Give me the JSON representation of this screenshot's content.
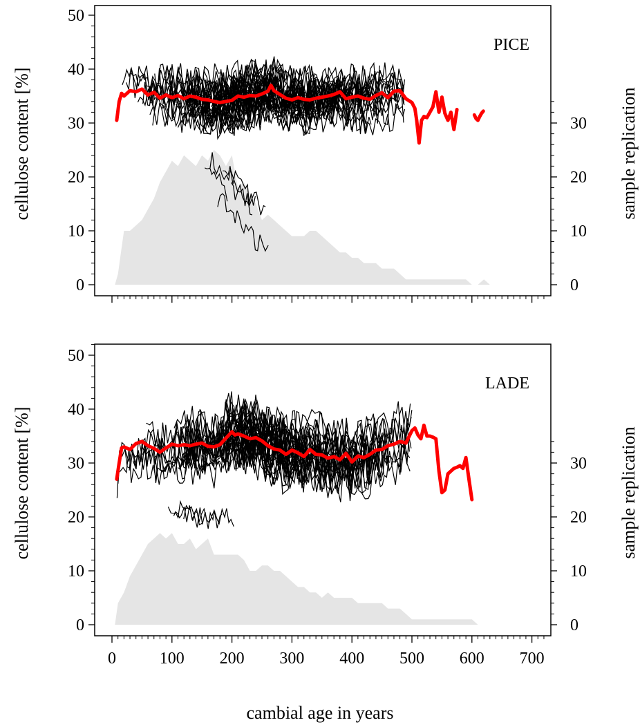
{
  "figure": {
    "xlabel": "cambial age in years",
    "xticks": [
      0,
      100,
      200,
      300,
      400,
      500,
      600,
      700
    ]
  },
  "chart_data": [
    {
      "type": "line",
      "panel": "PICE",
      "ylabel_left": "cellulose content [%]",
      "ylabel_right": "sample replication",
      "xlim": [
        0,
        725
      ],
      "ylim": [
        0,
        50
      ],
      "yticks_left": [
        0,
        10,
        20,
        30,
        40,
        50
      ],
      "yticks_right": [
        0,
        10,
        20,
        30
      ],
      "grid": false,
      "series": [
        {
          "role": "sample-replication-area",
          "color": "#e5e5e5",
          "x": [
            5,
            10,
            15,
            20,
            30,
            40,
            50,
            60,
            70,
            80,
            90,
            100,
            110,
            120,
            130,
            140,
            150,
            160,
            170,
            180,
            190,
            200,
            210,
            220,
            230,
            240,
            250,
            260,
            270,
            280,
            290,
            300,
            310,
            320,
            330,
            340,
            350,
            360,
            370,
            380,
            390,
            400,
            410,
            420,
            430,
            440,
            450,
            460,
            470,
            480,
            490,
            500,
            510,
            520,
            530,
            540,
            550,
            560,
            570,
            580,
            590,
            600,
            610,
            620,
            630,
            650,
            700,
            725
          ],
          "values": [
            0,
            2,
            6,
            10,
            10,
            11,
            12,
            14,
            16,
            19,
            21,
            23,
            22,
            24,
            23,
            22,
            24,
            23,
            25,
            24,
            22,
            24,
            18,
            19,
            17,
            15,
            12,
            13,
            12,
            11,
            10,
            9,
            9,
            9,
            10,
            10,
            9,
            8,
            7,
            6,
            6,
            5,
            5,
            4,
            4,
            4,
            3,
            3,
            3,
            2,
            1,
            1,
            1,
            1,
            1,
            1,
            1,
            1,
            1,
            1,
            1,
            0,
            0,
            1,
            0,
            0,
            0,
            0
          ]
        },
        {
          "role": "mean-curve",
          "color": "#ff0000",
          "x": [
            8,
            12,
            16,
            20,
            30,
            40,
            50,
            60,
            70,
            80,
            90,
            100,
            110,
            120,
            130,
            140,
            150,
            160,
            170,
            180,
            190,
            200,
            210,
            220,
            230,
            240,
            250,
            260,
            265,
            270,
            280,
            290,
            300,
            310,
            320,
            330,
            340,
            350,
            360,
            370,
            380,
            390,
            400,
            410,
            420,
            430,
            440,
            450,
            460,
            470,
            480,
            490,
            500,
            505,
            508,
            512,
            516,
            520,
            525,
            530,
            535,
            540,
            545,
            550,
            555,
            560,
            565,
            570,
            575
          ],
          "values": [
            30.5,
            34,
            35.5,
            35,
            36,
            35.8,
            36.3,
            35.2,
            35.7,
            34.6,
            35.2,
            34.7,
            35.1,
            34.5,
            35.0,
            34.8,
            34.4,
            34.3,
            34.0,
            33.8,
            34.0,
            34.2,
            35.0,
            34.8,
            35.1,
            35.0,
            35.4,
            35.9,
            37.0,
            36.0,
            35.3,
            34.6,
            34.3,
            34.7,
            34.4,
            34.3,
            34.6,
            34.8,
            35.0,
            35.3,
            35.8,
            34.5,
            34.8,
            35.0,
            34.6,
            34.4,
            35.1,
            35.6,
            34.7,
            35.9,
            36.0,
            34.5,
            33.8,
            32.7,
            30.5,
            26.3,
            30.5,
            31.2,
            31.0,
            32.0,
            33.0,
            35.8,
            32.0,
            34.8,
            31.8,
            30.5,
            32.0,
            28.8,
            32.5
          ]
        },
        {
          "role": "mean-curve-tail",
          "color": "#ff0000",
          "x": [
            604,
            607,
            610,
            613,
            616,
            619
          ],
          "values": [
            31.5,
            30.8,
            30.5,
            31.2,
            31.8,
            32.2
          ]
        }
      ]
    },
    {
      "type": "line",
      "panel": "LADE",
      "ylabel_left": "cellulose content [%]",
      "ylabel_right": "sample replication",
      "xlim": [
        0,
        725
      ],
      "ylim": [
        0,
        52
      ],
      "yticks_left": [
        0,
        10,
        20,
        30,
        40,
        50
      ],
      "yticks_right": [
        0,
        10,
        20,
        30
      ],
      "grid": false,
      "series": [
        {
          "role": "sample-replication-area",
          "color": "#e5e5e5",
          "x": [
            5,
            10,
            20,
            30,
            40,
            50,
            60,
            70,
            80,
            90,
            100,
            110,
            120,
            130,
            140,
            150,
            160,
            170,
            180,
            190,
            200,
            210,
            220,
            230,
            240,
            250,
            260,
            270,
            280,
            290,
            300,
            310,
            320,
            330,
            340,
            350,
            360,
            370,
            380,
            390,
            400,
            410,
            420,
            430,
            440,
            450,
            460,
            470,
            480,
            490,
            500,
            510,
            520,
            530,
            540,
            550,
            560,
            570,
            580,
            590,
            600,
            610,
            725
          ],
          "values": [
            0,
            4,
            6,
            9,
            11,
            13,
            15,
            16,
            17,
            16,
            17,
            15,
            15,
            16,
            14,
            15,
            16,
            13,
            13,
            13,
            13,
            13,
            12,
            10,
            10,
            11,
            11,
            10,
            10,
            9,
            8,
            7,
            7,
            6,
            6,
            5,
            6,
            5,
            5,
            5,
            5,
            4,
            4,
            4,
            4,
            4,
            3,
            3,
            3,
            2,
            1,
            1,
            1,
            1,
            1,
            1,
            1,
            1,
            1,
            1,
            1,
            0,
            0
          ]
        },
        {
          "role": "mean-curve",
          "color": "#ff0000",
          "x": [
            8,
            12,
            16,
            20,
            30,
            40,
            50,
            60,
            70,
            80,
            90,
            100,
            110,
            120,
            130,
            140,
            150,
            160,
            170,
            180,
            190,
            200,
            205,
            210,
            220,
            230,
            240,
            250,
            260,
            270,
            280,
            290,
            300,
            310,
            320,
            330,
            340,
            350,
            360,
            370,
            380,
            390,
            400,
            410,
            420,
            430,
            440,
            450,
            460,
            470,
            480,
            490,
            500,
            505,
            510,
            515,
            520,
            525,
            530,
            535,
            540,
            545,
            550,
            555,
            560,
            565,
            570,
            575,
            580,
            585,
            590,
            595,
            600
          ],
          "values": [
            27,
            30,
            32.8,
            33,
            32.5,
            33.6,
            34.0,
            33.2,
            32.7,
            32.0,
            32.8,
            33.5,
            33.2,
            33.4,
            33.2,
            33.5,
            33.7,
            33.1,
            33.0,
            33.4,
            34.6,
            35.8,
            35.2,
            35.4,
            35.0,
            34.5,
            34.7,
            34.1,
            33.2,
            32.6,
            32.4,
            31.6,
            32.4,
            31.9,
            31.2,
            32.5,
            31.6,
            31.5,
            30.9,
            31.2,
            30.6,
            31.8,
            30.2,
            31.3,
            31.0,
            31.6,
            32.4,
            32.5,
            33.2,
            33.5,
            34.0,
            33.7,
            36.0,
            36.5,
            35.2,
            34.5,
            37.0,
            35.0,
            35.0,
            34.8,
            34.5,
            28.5,
            24.5,
            25.0,
            28.0,
            28.5,
            29.0,
            29.2,
            29.5,
            29.0,
            31.0,
            27.0,
            23.2
          ]
        }
      ]
    }
  ]
}
